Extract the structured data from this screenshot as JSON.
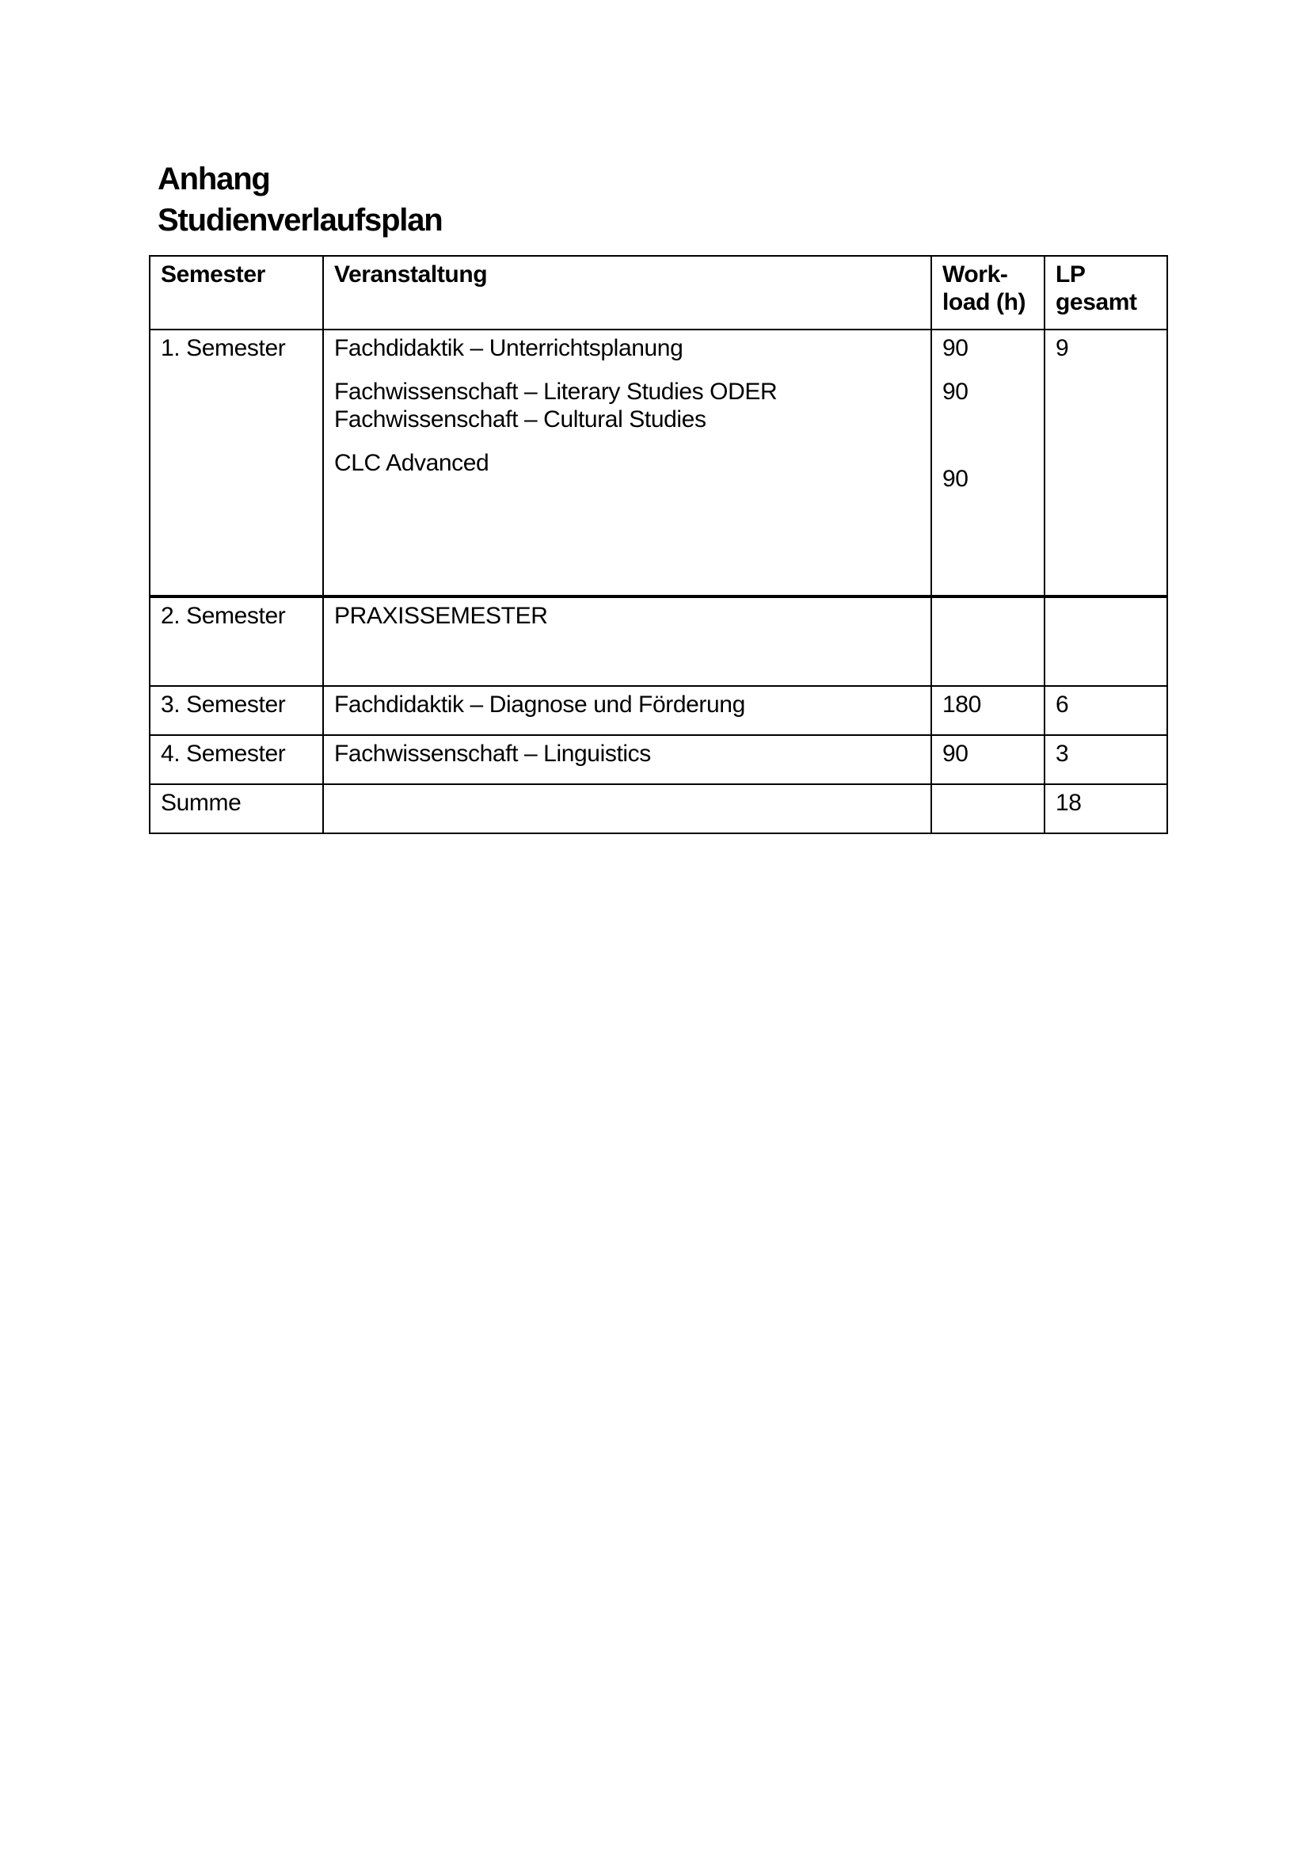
{
  "page": {
    "headings": [
      "Anhang",
      "Studienverlaufsplan"
    ]
  },
  "colors": {
    "text": "#000000",
    "border": "#000000",
    "background": "#ffffff"
  },
  "table": {
    "headers": {
      "semester": "Semester",
      "veranstaltung": "Veranstaltung",
      "workload_line1": "Work-",
      "workload_line2": "load (h)",
      "lp_line1": "LP",
      "lp_line2": "gesamt"
    },
    "rows": [
      {
        "semester": "1. Semester",
        "courses": [
          "Fachdidaktik – Unterrichtsplanung",
          "Fachwissenschaft – Literary Studies ODER",
          "Fachwissenschaft – Cultural Studies",
          "CLC Advanced"
        ],
        "workload": [
          "90",
          "90",
          "90"
        ],
        "lp": "9"
      },
      {
        "semester": "2. Semester",
        "courses": [
          "PRAXISSEMESTER"
        ],
        "workload": [],
        "lp": ""
      },
      {
        "semester": "3. Semester",
        "courses": [
          "Fachdidaktik – Diagnose und Förderung"
        ],
        "workload": [
          "180"
        ],
        "lp": "6"
      },
      {
        "semester": "4. Semester",
        "courses": [
          "Fachwissenschaft – Linguistics"
        ],
        "workload": [
          "90"
        ],
        "lp": "3"
      },
      {
        "semester": "Summe",
        "courses": [],
        "workload": [],
        "lp": "18"
      }
    ]
  }
}
